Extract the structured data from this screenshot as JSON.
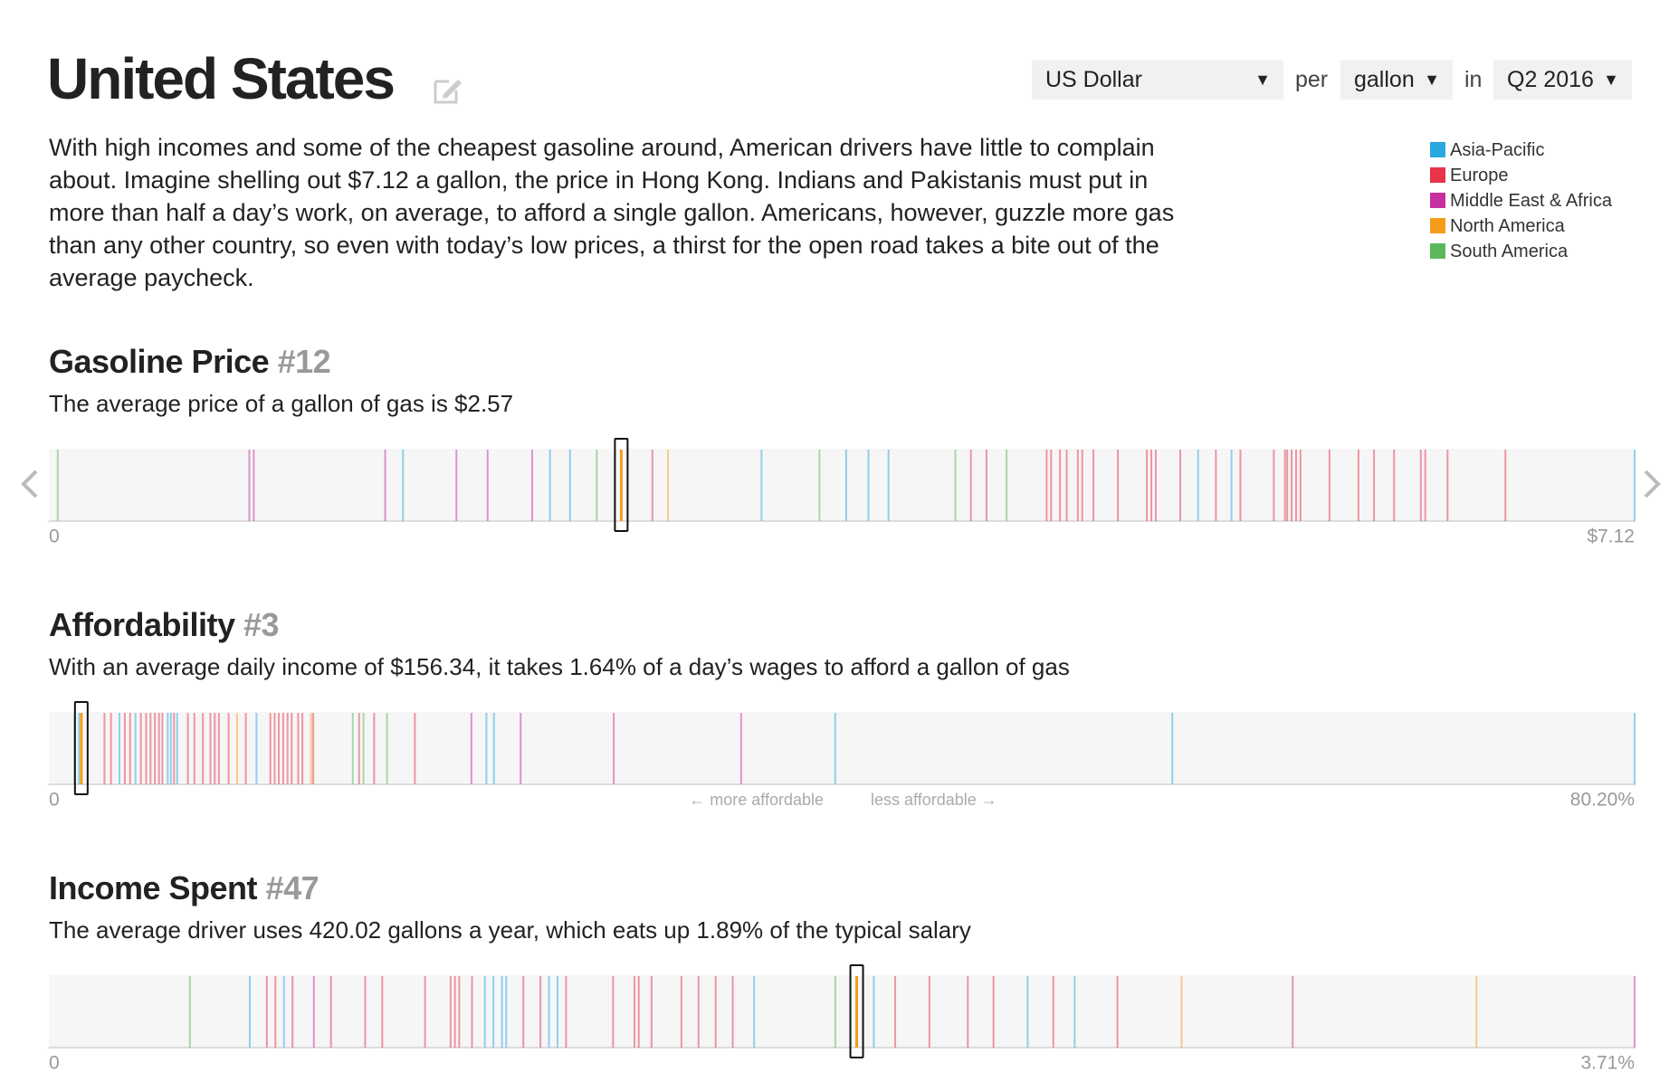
{
  "header": {
    "title": "United States"
  },
  "controls": {
    "currency": "US Dollar",
    "per_label": "per",
    "unit": "gallon",
    "in_label": "in",
    "period": "Q2 2016"
  },
  "description": "With high incomes and some of the cheapest gasoline around, American drivers have little to complain about. Imagine shelling out $7.12 a gallon, the price in Hong Kong. Indians and Pakistanis must put in more than half a day’s work, on average, to afford a single gallon. Americans, however, guzzle more gas than any other country, so even with today’s low prices, a thirst for the open road takes a bite out of the average paycheck.",
  "chart_data": [
    {
      "type": "strip",
      "title": "Gasoline Price",
      "rank": "#12",
      "subtitle": "The average price of a gallon of gas is $2.57",
      "xlim": [
        0,
        7.12
      ],
      "xticks": [
        0,
        {
          "value": 7.12,
          "label": "$7.12"
        }
      ],
      "highlighted": {
        "series": 3,
        "index": 0
      },
      "series": [
        {
          "name": "Asia-Pacific",
          "color": "#29a8e0",
          "values": [
            1.59,
            2.25,
            2.34,
            3.2,
            3.58,
            3.68,
            3.77,
            5.16,
            5.31,
            7.12
          ]
        },
        {
          "name": "Europe",
          "color": "#e8334a",
          "values": [
            2.71,
            4.14,
            4.21,
            4.48,
            4.5,
            4.54,
            4.57,
            4.62,
            4.64,
            4.69,
            4.8,
            4.93,
            4.95,
            4.97,
            5.08,
            5.24,
            5.35,
            5.5,
            5.55,
            5.56,
            5.58,
            5.6,
            5.62,
            5.75,
            5.88,
            5.95,
            6.04,
            6.16,
            6.18,
            6.28,
            6.54
          ]
        },
        {
          "name": "Middle East & Africa",
          "color": "#c6309f",
          "values": [
            0.9,
            0.92,
            1.51,
            1.83,
            1.97,
            2.17
          ]
        },
        {
          "name": "North America",
          "color": "#f59c1a",
          "values": [
            2.57,
            2.78
          ]
        },
        {
          "name": "South America",
          "color": "#5cb85c",
          "values": [
            0.04,
            2.46,
            3.46,
            4.07,
            4.3
          ]
        }
      ]
    },
    {
      "type": "strip",
      "title": "Affordability",
      "rank": "#3",
      "subtitle": "With an average daily income of $156.34, it takes 1.64% of a day’s wages to afford a gallon of gas",
      "xlim": [
        0,
        80.2
      ],
      "xticks": [
        0,
        {
          "value": 80.2,
          "label": "80.20%"
        }
      ],
      "annotations": [
        "← more affordable",
        "less affordable →"
      ],
      "highlighted": {
        "series": 3,
        "index": 0
      },
      "series": [
        {
          "name": "Asia-Pacific",
          "color": "#29a8e0",
          "values": [
            1.52,
            3.57,
            4.38,
            6.01,
            6.17,
            6.49,
            10.5,
            22.13,
            22.51,
            39.77,
            56.82,
            80.2
          ]
        },
        {
          "name": "Europe",
          "color": "#e8334a",
          "values": [
            2.81,
            3.14,
            3.84,
            4.11,
            4.65,
            4.92,
            5.14,
            5.36,
            5.57,
            5.74,
            6.33,
            7.03,
            7.36,
            7.79,
            8.17,
            8.39,
            8.6,
            9.09,
            9.96,
            11.2,
            11.42,
            11.63,
            11.85,
            12.07,
            12.28,
            12.61,
            12.82,
            13.37,
            15.69,
            16.45,
            18.51
          ]
        },
        {
          "name": "Middle East & Africa",
          "color": "#c6309f",
          "values": [
            21.37,
            23.86,
            28.57,
            35.01
          ]
        },
        {
          "name": "North America",
          "color": "#f59c1a",
          "values": [
            1.64,
            9.52,
            13.26
          ]
        },
        {
          "name": "South America",
          "color": "#5cb85c",
          "values": [
            1.3,
            15.37,
            15.91,
            17.1
          ]
        }
      ]
    },
    {
      "type": "strip",
      "title": "Income Spent",
      "rank": "#47",
      "subtitle": "The average driver uses 420.02 gallons a year, which eats up 1.89% of the typical salary",
      "xlim": [
        0,
        3.71
      ],
      "xticks": [
        0,
        {
          "value": 3.71,
          "label": "3.71%"
        }
      ],
      "highlighted": {
        "series": 3,
        "index": 0
      },
      "series": [
        {
          "name": "Asia-Pacific",
          "color": "#29a8e0",
          "values": [
            0.47,
            0.55,
            1.02,
            1.04,
            1.06,
            1.07,
            1.17,
            1.19,
            1.65,
            1.93,
            2.29,
            2.4
          ]
        },
        {
          "name": "Europe",
          "color": "#e8334a",
          "values": [
            0.51,
            0.53,
            0.57,
            0.66,
            0.74,
            0.78,
            0.88,
            0.94,
            0.95,
            0.96,
            0.99,
            1.11,
            1.15,
            1.21,
            1.32,
            1.37,
            1.38,
            1.41,
            1.48,
            1.52,
            1.56,
            1.6,
            1.98,
            2.06,
            2.15,
            2.21,
            2.35,
            2.5,
            2.91
          ]
        },
        {
          "name": "Middle East & Africa",
          "color": "#c6309f",
          "values": [
            0.62,
            3.71
          ]
        },
        {
          "name": "North America",
          "color": "#f59c1a",
          "values": [
            1.89,
            2.65,
            3.34
          ]
        },
        {
          "name": "South America",
          "color": "#5cb85c",
          "values": [
            0.33,
            1.84
          ]
        }
      ]
    }
  ]
}
